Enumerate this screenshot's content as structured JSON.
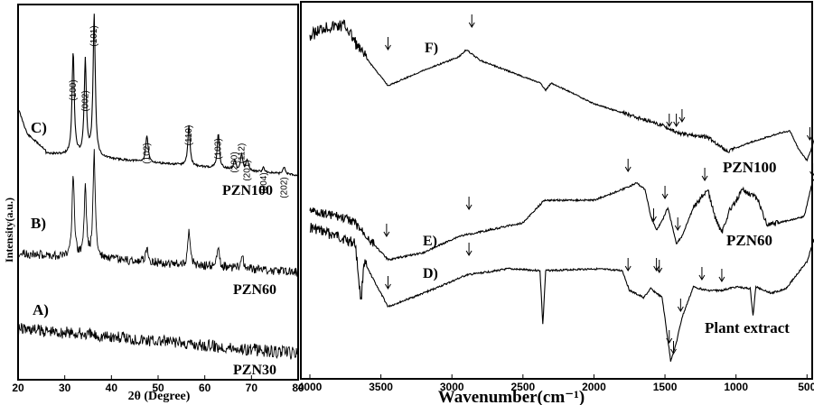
{
  "chart_data": [
    {
      "type": "line",
      "panel": "left",
      "xlabel": "2θ (Degree)",
      "ylabel": "Intensity(a.u.)",
      "xlim": [
        20,
        80
      ],
      "xticks": [
        "20",
        "30",
        "40",
        "50",
        "60",
        "70",
        "80"
      ],
      "series": [
        {
          "name": "PZN100",
          "tag": "C)",
          "x": [
            20,
            25,
            30,
            31.8,
            33,
            34.4,
            35.5,
            36.3,
            38,
            45,
            47.6,
            50,
            55,
            56.6,
            60,
            62.9,
            66.4,
            67.9,
            69.1,
            72.6,
            77,
            80
          ],
          "peaks": [
            {
              "x": 31.8,
              "hkl": "(100)"
            },
            {
              "x": 34.4,
              "hkl": "(002)"
            },
            {
              "x": 36.3,
              "hkl": "(101)"
            },
            {
              "x": 47.6,
              "hkl": "(102)"
            },
            {
              "x": 56.6,
              "hkl": "(110)"
            },
            {
              "x": 62.9,
              "hkl": "(103)"
            },
            {
              "x": 66.4,
              "hkl": "(200)"
            },
            {
              "x": 67.9,
              "hkl": "(112)"
            },
            {
              "x": 69.1,
              "hkl": "(201)"
            },
            {
              "x": 72.6,
              "hkl": "(004)"
            },
            {
              "x": 77.0,
              "hkl": "(202)"
            }
          ]
        },
        {
          "name": "PZN60",
          "tag": "B)",
          "peaks_x": [
            31.8,
            34.4,
            36.3,
            47.6,
            56.6,
            62.9,
            68.0
          ]
        },
        {
          "name": "PZN30",
          "tag": "A)",
          "peaks_x": []
        }
      ]
    },
    {
      "type": "line",
      "panel": "right",
      "xlabel": "Wavenumber(cm⁻¹)",
      "xlim": [
        4000,
        400
      ],
      "xticks": [
        "4000",
        "3500",
        "3000",
        "2500",
        "2000",
        "1500",
        "1000",
        "500"
      ],
      "series": [
        {
          "name": "PZN100",
          "tag": "F)"
        },
        {
          "name": "PZN60",
          "tag": "E)"
        },
        {
          "name": "Plant extract",
          "tag": "D)"
        }
      ]
    }
  ]
}
